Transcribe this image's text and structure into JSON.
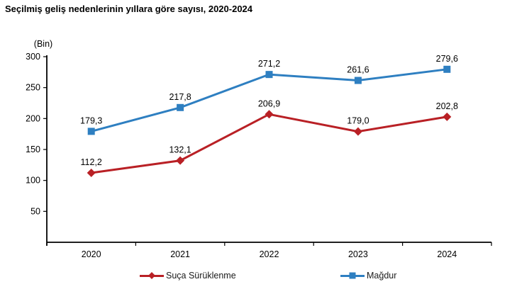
{
  "title": "Seçilmiş geliş nedenlerinin yıllara göre sayısı, 2020-2024",
  "chart_data": {
    "type": "line",
    "title": "Seçilmiş geliş nedenlerinin yıllara göre sayısı, 2020-2024",
    "ylabel": "(Bin)",
    "xlabel": "",
    "categories": [
      "2020",
      "2021",
      "2022",
      "2023",
      "2024"
    ],
    "series": [
      {
        "name": "Suça Sürüklenme",
        "values": [
          112.2,
          132.1,
          206.9,
          179.0,
          202.8
        ],
        "labels": [
          "112,2",
          "132,1",
          "206,9",
          "179,0",
          "202,8"
        ],
        "color": "#B92025",
        "marker": "diamond"
      },
      {
        "name": "Mağdur",
        "values": [
          179.3,
          217.8,
          271.2,
          261.6,
          279.6
        ],
        "labels": [
          "179,3",
          "217,8",
          "271,2",
          "261,6",
          "279,6"
        ],
        "color": "#2E7FC1",
        "marker": "square"
      }
    ],
    "ylim": [
      0,
      300
    ],
    "yticks": [
      50,
      100,
      150,
      200,
      250,
      300
    ],
    "grid": false,
    "legend_position": "bottom",
    "axis_color": "#000000",
    "text_color": "#000000"
  }
}
